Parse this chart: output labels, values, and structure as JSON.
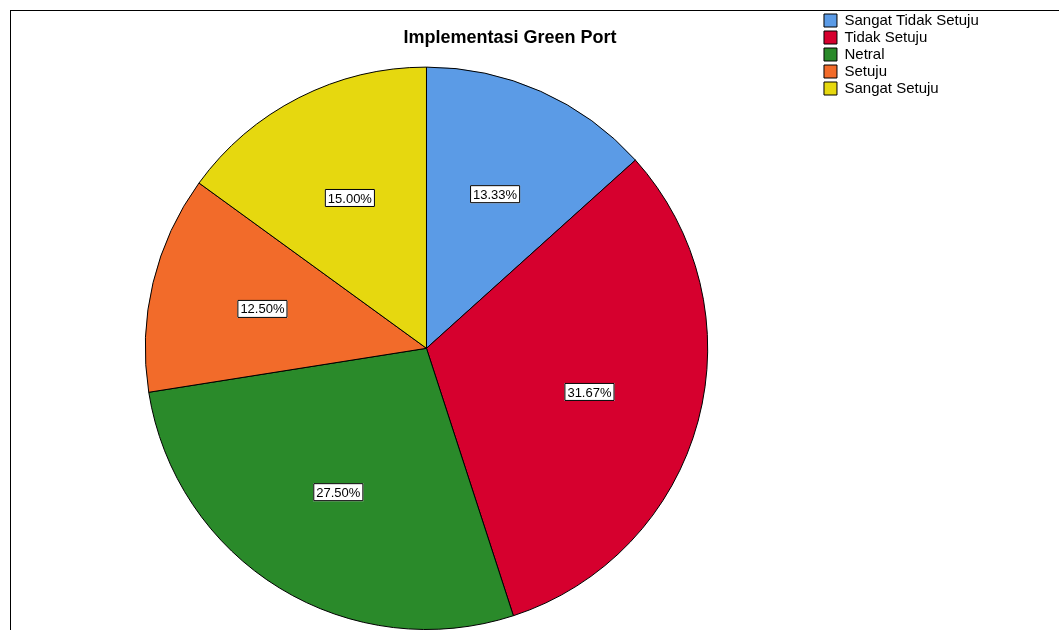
{
  "chart_data": {
    "type": "pie",
    "title": "Implementasi Green Port",
    "categories": [
      "Sangat Tidak Setuju",
      "Tidak Setuju",
      "Netral",
      "Setuju",
      "Sangat Setuju"
    ],
    "values": [
      13.33,
      31.67,
      27.5,
      12.5,
      15
    ],
    "colors": [
      "#5b9be6",
      "#d6002e",
      "#2a8a2a",
      "#f26b2a",
      "#e6d80f"
    ],
    "value_labels": [
      "13.33%",
      "31.67%",
      "27.50%",
      "12.50%",
      "15.00%"
    ],
    "legend": "top right"
  }
}
